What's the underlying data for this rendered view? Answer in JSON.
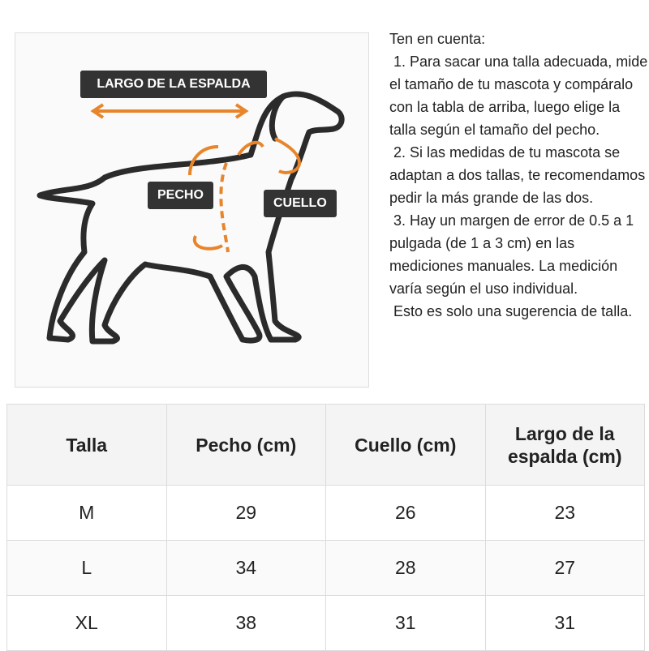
{
  "diagram": {
    "labels": {
      "back": "LARGO DE LA ESPALDA",
      "chest": "PECHO",
      "neck": "CUELLO"
    },
    "accent_color": "#e8852b"
  },
  "notes": {
    "heading": "Ten en cuenta:",
    "items": [
      " 1. Para sacar una talla adecuada, mide el tamaño de tu mascota y compáralo con la tabla de arriba, luego elige la talla según el tamaño del pecho.",
      " 2. Si las medidas de tu mascota se adaptan a dos tallas, te recomendamos pedir la más grande de las dos.",
      " 3. Hay un margen de error de 0.5 a 1 pulgada (de 1 a 3 cm) en las mediciones manuales. La medición varía según el uso individual.",
      " Esto es solo una sugerencia de talla."
    ]
  },
  "size_table": {
    "headers": [
      "Talla",
      "Pecho (cm)",
      "Cuello (cm)",
      "Largo de la espalda (cm)"
    ],
    "rows": [
      [
        "M",
        "29",
        "26",
        "23"
      ],
      [
        "L",
        "34",
        "28",
        "27"
      ],
      [
        "XL",
        "38",
        "31",
        "31"
      ]
    ]
  }
}
